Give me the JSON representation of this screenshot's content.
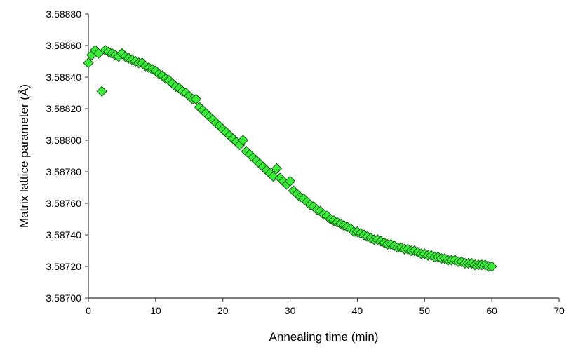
{
  "chart_data": {
    "type": "scatter",
    "title": "",
    "xlabel": "Annealing time (min)",
    "ylabel": "Matrix lattice parameter (Å)",
    "xlim": [
      0,
      70
    ],
    "ylim": [
      3.587,
      3.5888
    ],
    "x_ticks": [
      0,
      10,
      20,
      30,
      40,
      50,
      60,
      70
    ],
    "x_tick_labels": [
      "0",
      "10",
      "20",
      "30",
      "40",
      "50",
      "60",
      "70"
    ],
    "y_ticks": [
      3.587,
      3.5872,
      3.5874,
      3.5876,
      3.5878,
      3.588,
      3.5882,
      3.5884,
      3.5886,
      3.5888
    ],
    "y_tick_labels": [
      "3.58700",
      "3.58720",
      "3.58740",
      "3.58760",
      "3.58780",
      "3.58800",
      "3.58820",
      "3.58840",
      "3.58860",
      "3.58880"
    ],
    "grid": false,
    "marker": "diamond",
    "marker_color": "#33ee33",
    "marker_edge_color": "#1a4d1a",
    "series": [
      {
        "x": [
          0.0,
          0.5,
          1.0,
          1.5,
          2.0,
          2.5,
          3.0,
          3.5,
          4.0,
          4.5,
          5.0,
          5.5,
          6.0,
          6.5,
          7.0,
          7.5,
          8.0,
          8.5,
          9.0,
          9.5,
          10.0,
          10.5,
          11.0,
          11.5,
          12.0,
          12.5,
          13.0,
          13.5,
          14.0,
          14.5,
          15.0,
          15.5,
          16.0,
          16.5,
          17.0,
          17.5,
          18.0,
          18.5,
          19.0,
          19.5,
          20.0,
          20.5,
          21.0,
          21.5,
          22.0,
          22.5,
          23.0,
          23.5,
          24.0,
          24.5,
          25.0,
          25.5,
          26.0,
          26.5,
          27.0,
          27.5,
          28.0,
          28.5,
          29.0,
          29.5,
          30.0,
          30.5,
          31.0,
          31.5,
          32.0,
          32.5,
          33.0,
          33.5,
          34.0,
          34.5,
          35.0,
          35.5,
          36.0,
          36.5,
          37.0,
          37.5,
          38.0,
          38.5,
          39.0,
          39.5,
          40.0,
          40.5,
          41.0,
          41.5,
          42.0,
          42.5,
          43.0,
          43.5,
          44.0,
          44.5,
          45.0,
          45.5,
          46.0,
          46.5,
          47.0,
          47.5,
          48.0,
          48.5,
          49.0,
          49.5,
          50.0,
          50.5,
          51.0,
          51.5,
          52.0,
          52.5,
          53.0,
          53.5,
          54.0,
          54.5,
          55.0,
          55.5,
          56.0,
          56.5,
          57.0,
          57.5,
          58.0,
          58.5,
          59.0,
          59.5,
          60.0
        ],
        "y": [
          3.58849,
          3.58854,
          3.58857,
          3.58855,
          3.58831,
          3.58857,
          3.58856,
          3.58855,
          3.58854,
          3.58853,
          3.58855,
          3.58853,
          3.58852,
          3.58851,
          3.5885,
          3.58849,
          3.58849,
          3.58847,
          3.58846,
          3.58845,
          3.58844,
          3.58842,
          3.58841,
          3.58839,
          3.58838,
          3.58836,
          3.58834,
          3.58833,
          3.58831,
          3.5883,
          3.58828,
          3.58826,
          3.58826,
          3.58821,
          3.58819,
          3.58817,
          3.58815,
          3.58813,
          3.58811,
          3.58809,
          3.58807,
          3.58805,
          3.58803,
          3.58801,
          3.58799,
          3.58797,
          3.588,
          3.58793,
          3.58791,
          3.58789,
          3.58787,
          3.58785,
          3.58783,
          3.58781,
          3.58779,
          3.58777,
          3.58782,
          3.58776,
          3.58774,
          3.58772,
          3.58774,
          3.58768,
          3.58766,
          3.58764,
          3.58763,
          3.58761,
          3.58759,
          3.58758,
          3.58756,
          3.58755,
          3.58753,
          3.58752,
          3.5875,
          3.58749,
          3.58748,
          3.58747,
          3.58746,
          3.58745,
          3.58744,
          3.58742,
          3.58742,
          3.58741,
          3.5874,
          3.58739,
          3.58738,
          3.58737,
          3.58737,
          3.58736,
          3.58735,
          3.58734,
          3.58734,
          3.58733,
          3.58732,
          3.58732,
          3.58731,
          3.58731,
          3.5873,
          3.5873,
          3.58729,
          3.58728,
          3.58728,
          3.58727,
          3.58727,
          3.58726,
          3.58726,
          3.58725,
          3.58725,
          3.58724,
          3.58724,
          3.58724,
          3.58723,
          3.58723,
          3.58722,
          3.58722,
          3.58722,
          3.58721,
          3.58721,
          3.58721,
          3.58721,
          3.5872,
          3.5872
        ]
      }
    ]
  }
}
